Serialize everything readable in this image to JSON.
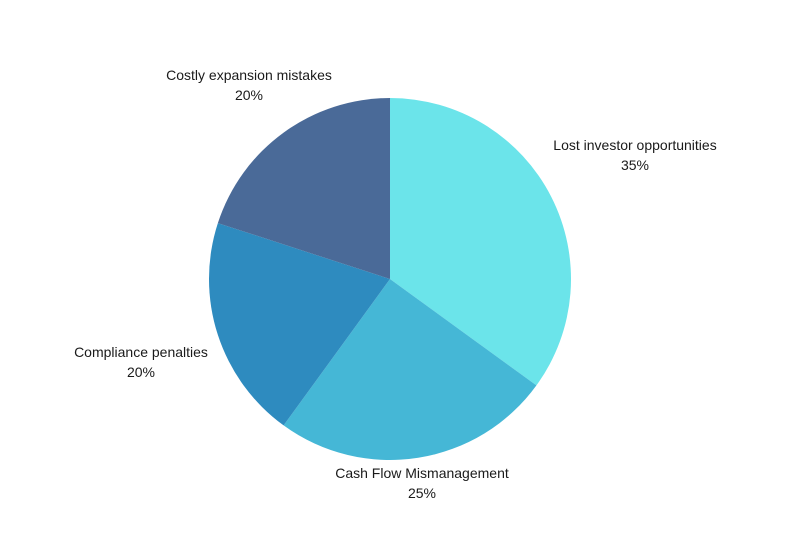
{
  "chart_data": {
    "type": "pie",
    "title": "",
    "legend": "none",
    "slices": [
      {
        "label": "Lost investor opportunities",
        "value": 35,
        "value_label": "35%",
        "color": "#6be4ea"
      },
      {
        "label": "Cash Flow Mismanagement",
        "value": 25,
        "value_label": "25%",
        "color": "#45b7d6"
      },
      {
        "label": "Compliance penalties",
        "value": 20,
        "value_label": "20%",
        "color": "#2e8bbf"
      },
      {
        "label": "Costly expansion mistakes",
        "value": 20,
        "value_label": "20%",
        "color": "#4a6a98"
      }
    ]
  }
}
